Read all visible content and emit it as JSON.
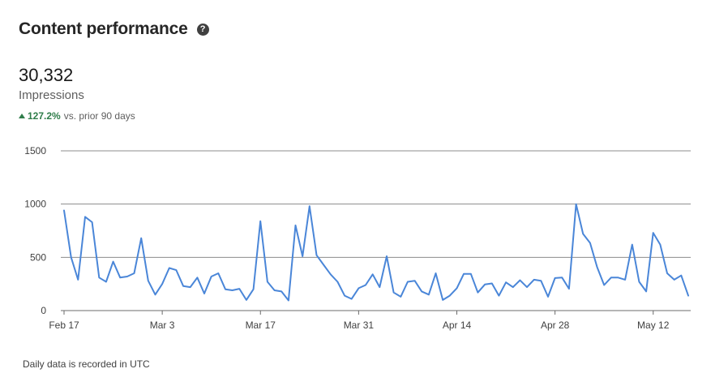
{
  "header": {
    "title": "Content performance",
    "help_icon": "help-circle-icon"
  },
  "metric": {
    "value": "30,332",
    "label": "Impressions",
    "change_pct": "127.2%",
    "change_text": "vs. prior 90 days",
    "change_direction": "up",
    "change_color": "#2f7d4a"
  },
  "footnote": "Daily data is recorded in UTC",
  "chart_data": {
    "type": "line",
    "title": "",
    "xlabel": "",
    "ylabel": "",
    "ylim": [
      0,
      1500
    ],
    "yticks": [
      0,
      500,
      1000,
      1500
    ],
    "grid": true,
    "line_color": "#4a86d8",
    "xtick_labels": [
      "Feb 17",
      "Mar 3",
      "Mar 17",
      "Mar 31",
      "Apr 14",
      "Apr 28",
      "May 12"
    ],
    "x_start": "Feb 17",
    "x_end": "May 17",
    "series": [
      {
        "values": [
          940,
          500,
          290,
          880,
          830,
          310,
          270,
          460,
          310,
          320,
          350,
          680,
          280,
          150,
          250,
          400,
          380,
          230,
          220,
          310,
          160,
          320,
          350,
          200,
          190,
          205,
          100,
          200,
          840,
          270,
          190,
          180,
          95,
          800,
          510,
          980,
          520,
          430,
          340,
          270,
          140,
          110,
          210,
          240,
          340,
          220,
          510,
          170,
          130,
          270,
          280,
          180,
          150,
          350,
          100,
          140,
          210,
          345,
          345,
          170,
          245,
          255,
          140,
          265,
          220,
          285,
          220,
          290,
          280,
          130,
          305,
          310,
          205,
          1000,
          720,
          635,
          410,
          240,
          310,
          310,
          290,
          620,
          270,
          180,
          730,
          620,
          350,
          290,
          330,
          140
        ]
      }
    ]
  }
}
